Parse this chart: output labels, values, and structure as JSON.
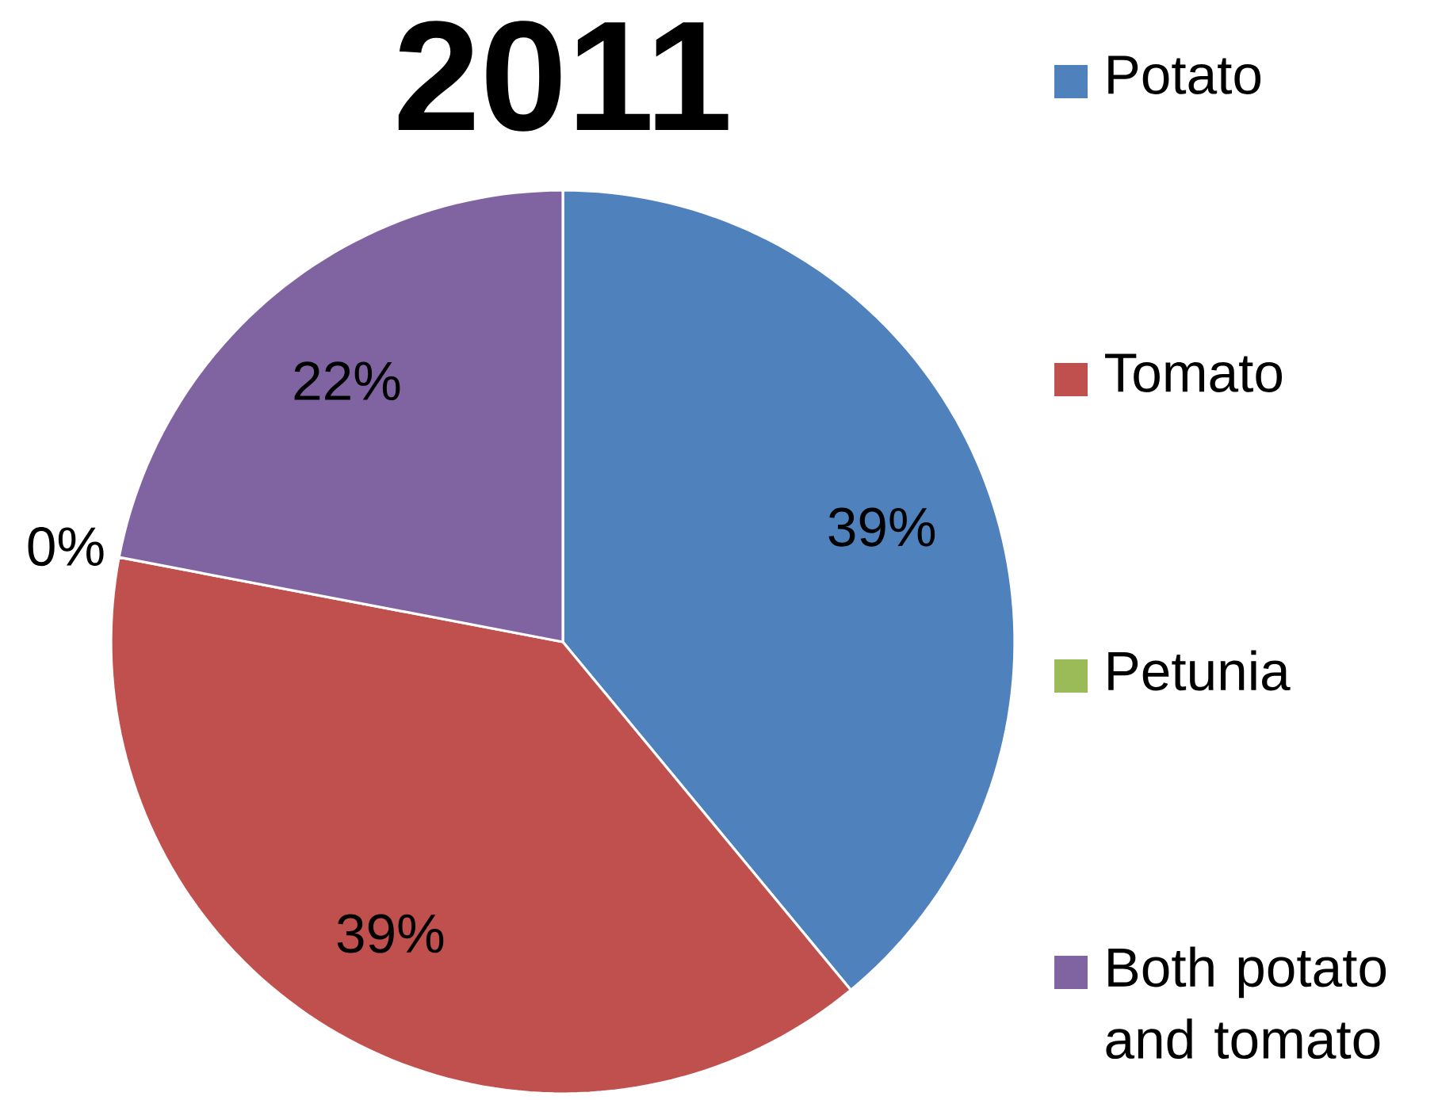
{
  "chart_data": {
    "type": "pie",
    "title": "2011",
    "categories": [
      "Potato",
      "Tomato",
      "Petunia",
      "Both potato and tomato"
    ],
    "values": [
      39,
      39,
      0,
      22
    ],
    "colors": [
      "#4f81bd",
      "#c0504d",
      "#9bbb59",
      "#8064a2"
    ],
    "value_labels": [
      "39%",
      "39%",
      "0%",
      "22%"
    ],
    "legend": "right"
  }
}
